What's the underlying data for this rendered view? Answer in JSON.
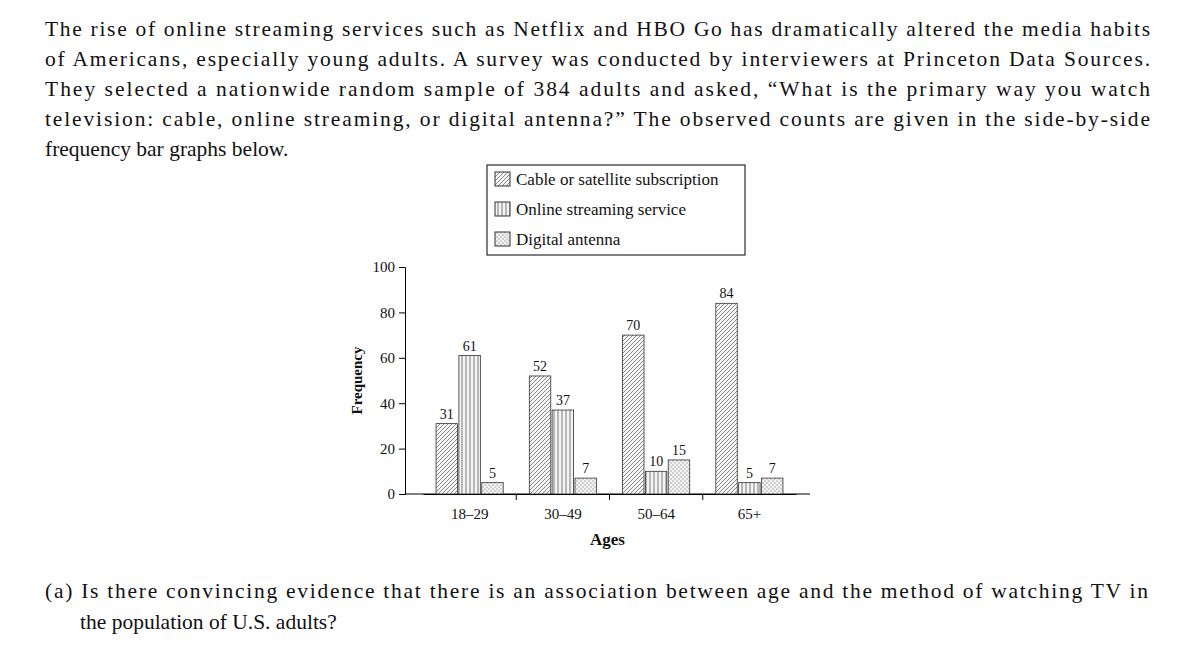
{
  "document": {
    "intro": [
      "The rise of online streaming services such as Netflix and HBO Go has dramatically altered the media habits",
      "of Americans, especially young adults. A survey was conducted by interviewers at Princeton Data Sources.",
      "They selected a nationwide random sample of 384 adults and asked, “What is the primary way you watch",
      "television: cable, online streaming, or digital antenna?” The observed counts are given in the side-by-side",
      "frequency bar graphs below."
    ],
    "question": [
      "(a) Is there convincing evidence that there is an association between age and the method of watching TV in",
      "the population of U.S. adults?"
    ]
  },
  "chart_data": {
    "type": "bar",
    "x_label": "Ages",
    "y_label": "Frequency",
    "categories": [
      "18–29",
      "30–49",
      "50–64",
      "65+"
    ],
    "series": [
      {
        "name": "Cable or satellite subscription",
        "color": "#8c8c8c",
        "values": [
          31,
          52,
          70,
          84
        ]
      },
      {
        "name": "Online streaming service",
        "color": "#7a7a7a",
        "values": [
          61,
          37,
          10,
          5
        ]
      },
      {
        "name": "Digital antenna",
        "color": "#9a9a9a",
        "values": [
          5,
          7,
          15,
          7
        ]
      }
    ],
    "ylim": [
      0,
      100
    ],
    "yticks": [
      0,
      20,
      40,
      60,
      80,
      100
    ],
    "legend": "top",
    "data_labels": true,
    "grid": false
  }
}
